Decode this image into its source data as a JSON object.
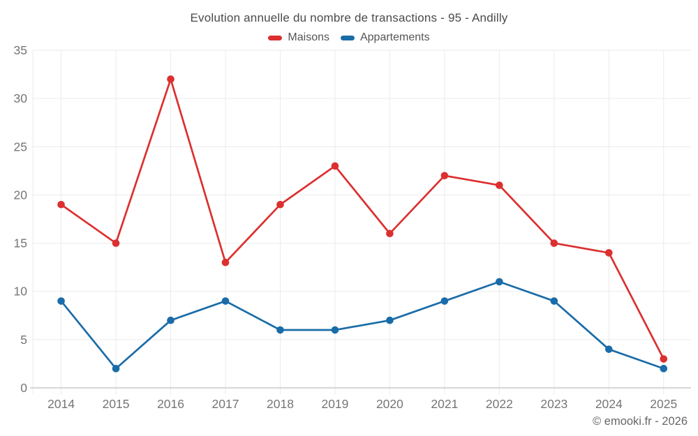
{
  "chart_data": {
    "type": "line",
    "title": "Evolution annuelle du nombre de transactions - 95 - Andilly",
    "categories": [
      "2014",
      "2015",
      "2016",
      "2017",
      "2018",
      "2019",
      "2020",
      "2021",
      "2022",
      "2023",
      "2024",
      "2025"
    ],
    "series": [
      {
        "name": "Maisons",
        "color": "#dc2f2f",
        "values": [
          19,
          15,
          32,
          13,
          19,
          23,
          16,
          22,
          21,
          15,
          14,
          3
        ]
      },
      {
        "name": "Appartements",
        "color": "#1a6ca8",
        "values": [
          9,
          2,
          7,
          9,
          6,
          6,
          7,
          9,
          11,
          9,
          4,
          2
        ]
      }
    ],
    "xlabel": "",
    "ylabel": "",
    "ylim": [
      0,
      35
    ],
    "yticks": [
      0,
      5,
      10,
      15,
      20,
      25,
      30,
      35
    ],
    "grid": true,
    "legend_position": "top"
  },
  "footer": {
    "credit": "© emooki.fr - 2026"
  },
  "colors": {
    "background": "#ffffff",
    "grid": "#ebebeb",
    "axis": "#c9c9c9",
    "title_text": "#4a4a4a",
    "legend_text": "#555555",
    "tick_text": "#757575",
    "footer_text": "#666666"
  }
}
